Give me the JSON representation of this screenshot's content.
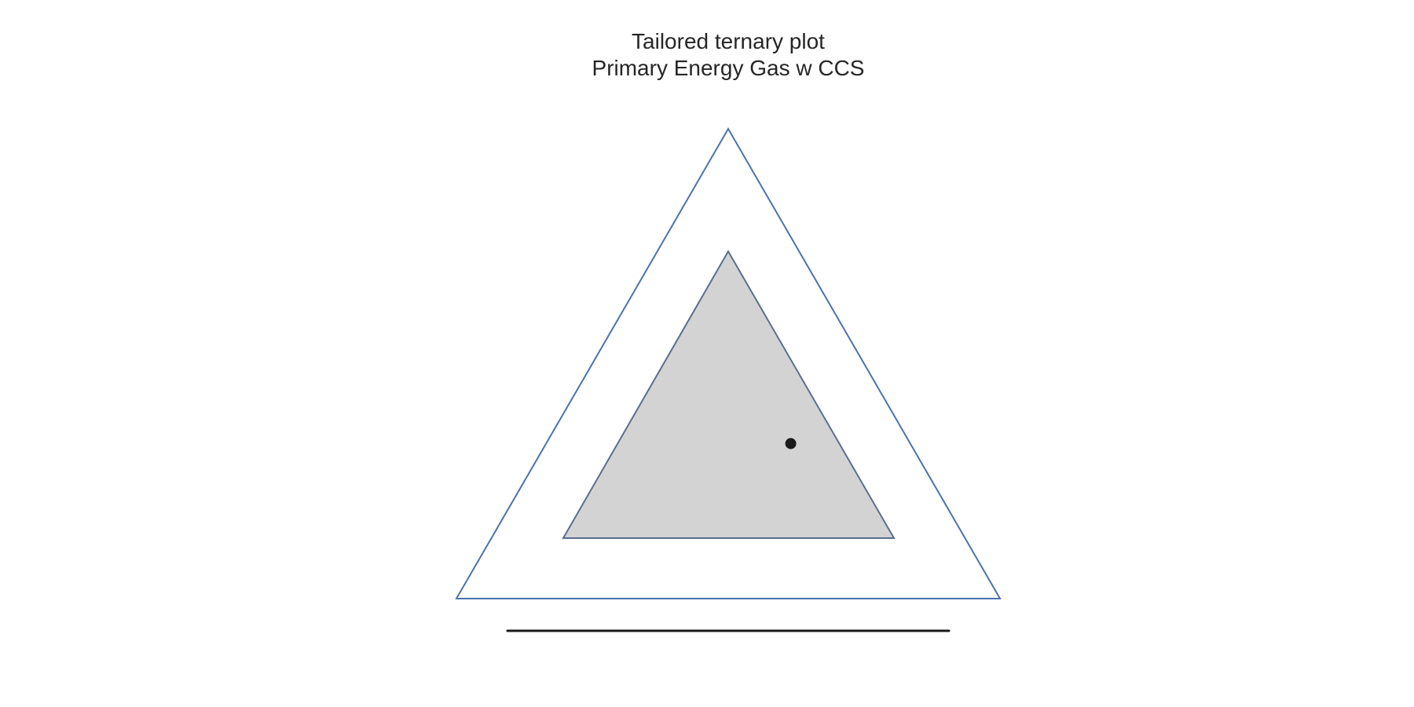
{
  "chart_data": {
    "type": "scatter",
    "subtype": "ternary",
    "title": "Tailored ternary plot",
    "subtitle": "Primary Energy Gas w CCS",
    "xlabel": "",
    "ylabel": "",
    "grid": false,
    "colors": {
      "outer_triangle_stroke": "#4c72b0",
      "inner_triangle_fill": "#d3d3d3",
      "inner_triangle_stroke": "#5a6f8e",
      "point_color": "#1a1a1a",
      "baseline_color": "#1a1a1a"
    },
    "points": [
      {
        "a": 0.33,
        "b": 0.45,
        "c": 0.22
      }
    ]
  }
}
